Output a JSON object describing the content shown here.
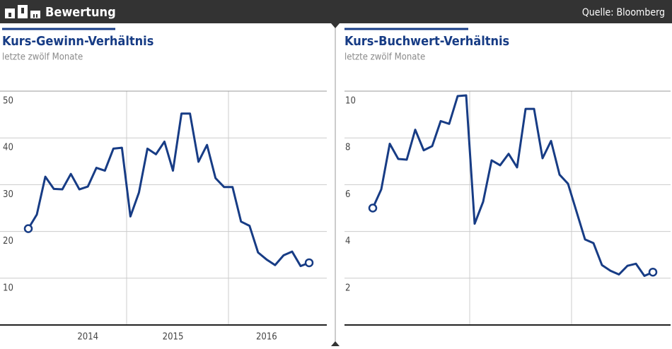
{
  "header": {
    "title": "Bewertung",
    "source": "Quelle: Bloomberg"
  },
  "chart_data": [
    {
      "type": "line",
      "title": "Kurs-Gewinn-Verhältnis",
      "subtitle": "letzte zwölf Monate",
      "categories": [
        null,
        null,
        null,
        null,
        null,
        null,
        null,
        "2014",
        null,
        null,
        null,
        null,
        null,
        null,
        null,
        null,
        null,
        "2015",
        null,
        null,
        null,
        null,
        null,
        null,
        null,
        null,
        null,
        null,
        "2016",
        null,
        null,
        null,
        null,
        null
      ],
      "values": [
        20.6,
        23.6,
        31.7,
        29.1,
        29,
        32.3,
        29,
        29.6,
        33.6,
        33,
        37.7,
        37.9,
        23.2,
        28.3,
        37.7,
        36.5,
        39.2,
        33,
        45.2,
        45.2,
        34.9,
        38.5,
        31.4,
        29.5,
        29.5,
        22.1,
        21.2,
        15.5,
        14,
        12.8,
        14.9,
        15.7,
        12.6,
        13.3
      ],
      "color": "#173c85",
      "ylim": [
        0,
        50
      ],
      "yticks": [
        10,
        20,
        30,
        40,
        50
      ],
      "grid": true
    },
    {
      "type": "line",
      "title": "Kurs-Buchwert-Verhältnis",
      "subtitle": "letzte zwölf Monate",
      "categories": [
        null,
        null,
        null,
        null,
        null,
        null,
        null,
        null,
        null,
        null,
        null,
        null,
        null,
        null,
        null,
        null,
        null,
        null,
        null,
        null,
        null,
        null,
        null,
        null,
        null,
        null,
        null,
        null,
        null,
        null,
        null,
        null,
        null,
        null
      ],
      "values": [
        5.0,
        5.8,
        7.75,
        7.1,
        7.07,
        8.35,
        7.47,
        7.65,
        8.72,
        8.6,
        9.79,
        9.82,
        4.33,
        5.27,
        7.04,
        6.83,
        7.32,
        6.74,
        9.24,
        9.24,
        7.13,
        7.87,
        6.43,
        6.04,
        4.85,
        3.66,
        3.5,
        2.56,
        2.32,
        2.16,
        2.53,
        2.62,
        2.1,
        2.26
      ],
      "color": "#173c85",
      "ylim": [
        0,
        10
      ],
      "yticks": [
        2,
        4,
        6,
        8,
        10
      ],
      "grid": true
    }
  ]
}
